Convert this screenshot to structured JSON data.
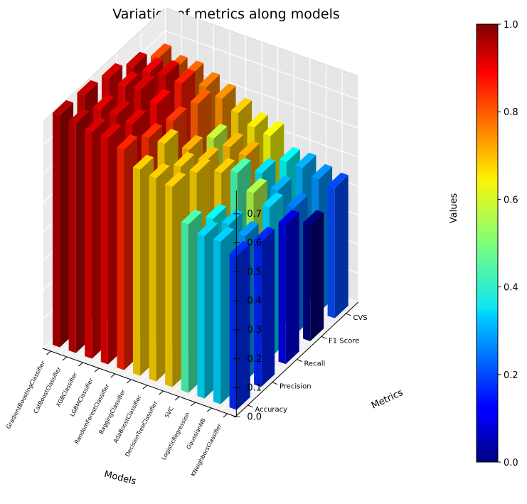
{
  "chart_data": {
    "type": "bar",
    "subtype": "3d-bar",
    "title": "Variation of metrics along models",
    "xlabel": "Models",
    "ylabel": "Metrics",
    "zlabel": "Values",
    "zlim": [
      0,
      0.8
    ],
    "zticks": [
      "0.0",
      "0.1",
      "0.2",
      "0.3",
      "0.4",
      "0.5",
      "0.6",
      "0.7"
    ],
    "models": [
      "GradientBoostingClassifier",
      "CatBoostClassifier",
      "XGBClassifier",
      "LGBMClassifier",
      "RandomForestClassifier",
      "BaggingClassifier",
      "AdaBoostClassifier",
      "DecisionTreeClassifier",
      "SVC",
      "LogisticRegression",
      "GaussianNB",
      "KNeighborsClassifier"
    ],
    "metrics": [
      "Accuracy",
      "Precision",
      "Recall",
      "F1 Score",
      "CVS"
    ],
    "series": [
      {
        "name": "Accuracy",
        "values": [
          0.8,
          0.79,
          0.78,
          0.78,
          0.76,
          0.71,
          0.7,
          0.69,
          0.58,
          0.56,
          0.56,
          0.53
        ]
      },
      {
        "name": "Precision",
        "values": [
          0.79,
          0.76,
          0.76,
          0.75,
          0.72,
          0.72,
          0.66,
          0.66,
          0.52,
          0.52,
          0.5,
          0.5
        ]
      },
      {
        "name": "Recall",
        "values": [
          0.77,
          0.76,
          0.77,
          0.74,
          0.7,
          0.62,
          0.6,
          0.58,
          0.6,
          0.55,
          0.52,
          0.48
        ]
      },
      {
        "name": "F1 Score",
        "values": [
          0.73,
          0.73,
          0.74,
          0.73,
          0.68,
          0.58,
          0.57,
          0.56,
          0.52,
          0.48,
          0.44,
          0.4
        ]
      },
      {
        "name": "CVS",
        "values": [
          0.68,
          0.66,
          0.66,
          0.64,
          0.62,
          0.59,
          0.56,
          0.55,
          0.48,
          0.48,
          0.46,
          0.45
        ]
      }
    ],
    "colors": [
      [
        0.95,
        0.94,
        0.91,
        0.9,
        0.84,
        0.67,
        0.67,
        0.67,
        0.45,
        0.34,
        0.33,
        0.17
      ],
      [
        0.93,
        0.9,
        0.91,
        0.9,
        0.83,
        0.67,
        0.67,
        0.67,
        0.38,
        0.33,
        0.28,
        0.16
      ],
      [
        0.91,
        0.9,
        0.91,
        0.88,
        0.82,
        0.7,
        0.68,
        0.67,
        0.45,
        0.55,
        0.34,
        0.1
      ],
      [
        0.92,
        0.89,
        0.91,
        0.85,
        0.78,
        0.57,
        0.69,
        0.7,
        0.35,
        0.3,
        0.25,
        0.0
      ],
      [
        0.8,
        0.78,
        0.77,
        0.75,
        0.73,
        0.67,
        0.64,
        0.62,
        0.38,
        0.3,
        0.27,
        0.2
      ]
    ],
    "colorbar": {
      "colormap": "jet",
      "range": [
        0,
        1
      ],
      "ticks": [
        "0.0",
        "0.2",
        "0.4",
        "0.6",
        "0.8",
        "1.0"
      ]
    },
    "grid": true
  }
}
